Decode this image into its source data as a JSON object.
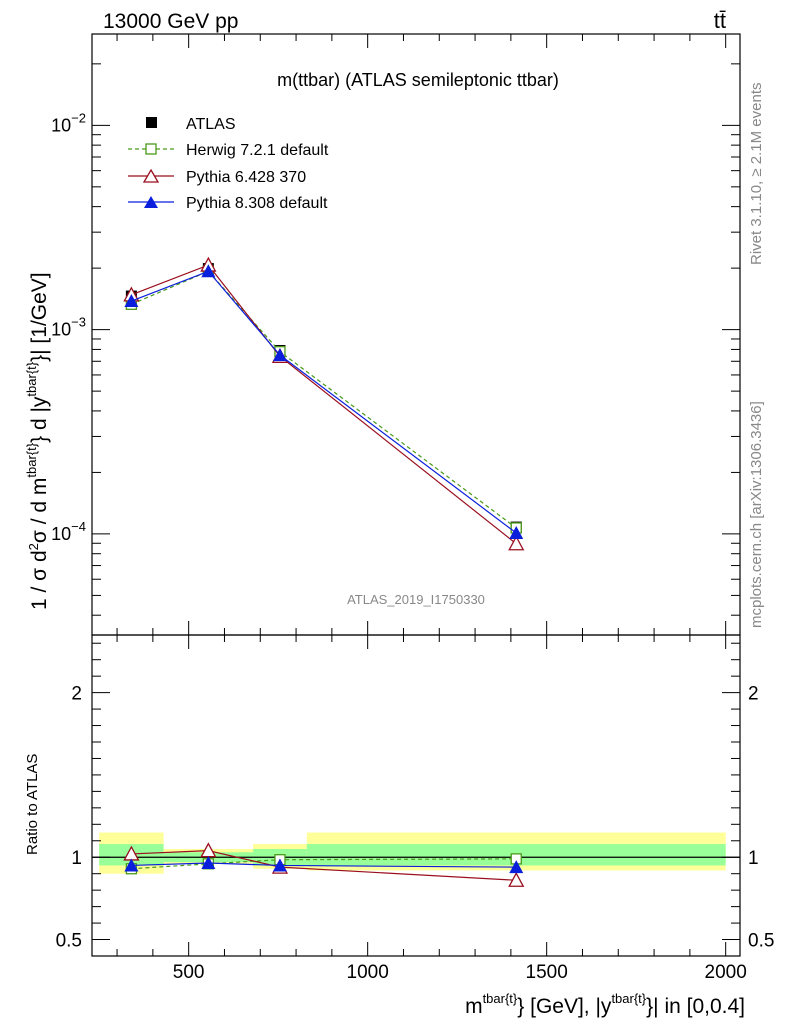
{
  "header": {
    "energy": "13000 GeV pp",
    "process": "tt̄"
  },
  "side": {
    "rivet": "Rivet 3.1.10, ≥ 2.1M events",
    "mcplots": "mcplots.cern.ch [arXiv:1306.3436]"
  },
  "plot_title": "m(ttbar) (ATLAS semileptonic ttbar)",
  "analysis_id": "ATLAS_2019_I1750330",
  "colors": {
    "atlas": "#000000",
    "herwig": "#4a9a1a",
    "pythia6": "#9a0f1f",
    "pythia8": "#0a1fdc",
    "band_yellow": "#ffff99",
    "band_green": "#99ff99"
  },
  "chart_data": [
    {
      "type": "line",
      "panel": "main",
      "ylabel": "1 / σ d²σ / d m^{tbar{t}} d |y^{tbar{t}}| [1/GeV]",
      "yscale": "log",
      "ylim": [
        3.2e-05,
        0.028
      ],
      "xlim": [
        230,
        2040
      ],
      "yticks": [
        {
          "value": 0.01,
          "label": "10",
          "exp": "−2"
        },
        {
          "value": 0.001,
          "label": "10",
          "exp": "−3"
        },
        {
          "value": 0.0001,
          "label": "10",
          "exp": "−4"
        }
      ],
      "series": [
        {
          "name": "ATLAS",
          "marker": "square-filled",
          "style": "none",
          "x": [
            340,
            555,
            755,
            1415
          ],
          "y": [
            0.00146,
            0.00199,
            0.00079,
            0.000108
          ]
        },
        {
          "name": "Herwig 7.2.1 default",
          "marker": "square-open",
          "style": "dashed",
          "x": [
            340,
            555,
            755,
            1415
          ],
          "y": [
            0.00133,
            0.00193,
            0.00078,
            0.000107
          ]
        },
        {
          "name": "Pythia 6.428 370",
          "marker": "triangle-open",
          "style": "solid",
          "x": [
            340,
            555,
            755,
            1415
          ],
          "y": [
            0.00148,
            0.00207,
            0.00074,
            8.95e-05
          ]
        },
        {
          "name": "Pythia 8.308 default",
          "marker": "triangle-filled",
          "style": "solid",
          "x": [
            340,
            555,
            755,
            1415
          ],
          "y": [
            0.00138,
            0.00193,
            0.00075,
            0.000101
          ]
        }
      ]
    },
    {
      "type": "line",
      "panel": "ratio",
      "ylabel": "Ratio to ATLAS",
      "xlabel": "m^{tbar{t}} [GeV], |y^{tbar{t}}| in [0,0.4]",
      "ylim": [
        0.4,
        2.35
      ],
      "xlim": [
        230,
        2040
      ],
      "yticks": [
        0.5,
        1,
        2
      ],
      "xticks": [
        500,
        1000,
        1500,
        2000
      ],
      "bands": [
        {
          "x": [
            250,
            430
          ],
          "yellow": [
            0.9,
            1.15
          ],
          "green": [
            0.95,
            1.08
          ]
        },
        {
          "x": [
            430,
            680
          ],
          "yellow": [
            0.96,
            1.05
          ],
          "green": [
            0.97,
            1.03
          ]
        },
        {
          "x": [
            680,
            830
          ],
          "yellow": [
            0.93,
            1.08
          ],
          "green": [
            0.95,
            1.05
          ]
        },
        {
          "x": [
            830,
            2000
          ],
          "yellow": [
            0.92,
            1.15
          ],
          "green": [
            0.95,
            1.08
          ]
        }
      ],
      "series": [
        {
          "name": "Herwig 7.2.1 default",
          "x": [
            340,
            555,
            755,
            1415
          ],
          "y": [
            0.93,
            0.96,
            0.985,
            0.99
          ]
        },
        {
          "name": "Pythia 6.428 370",
          "x": [
            340,
            555,
            755,
            1415
          ],
          "y": [
            1.02,
            1.04,
            0.94,
            0.86
          ]
        },
        {
          "name": "Pythia 8.308 default",
          "x": [
            340,
            555,
            755,
            1415
          ],
          "y": [
            0.95,
            0.965,
            0.95,
            0.94
          ]
        }
      ]
    }
  ]
}
